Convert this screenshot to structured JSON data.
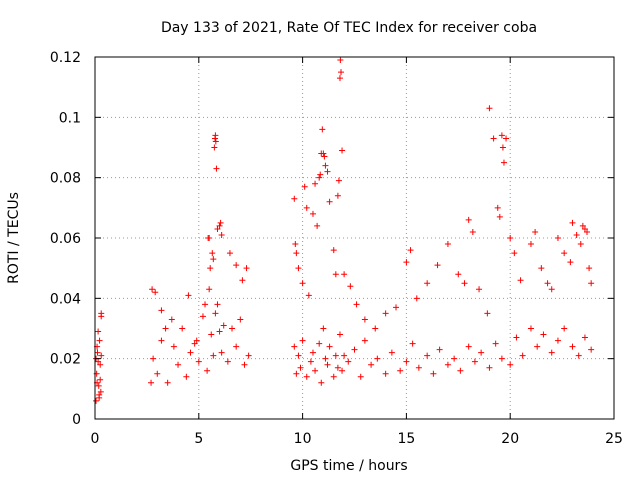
{
  "chart_data": {
    "type": "scatter",
    "title": "Day 133 of 2021, Rate Of TEC Index for receiver coba",
    "xlabel": "GPS time / hours",
    "ylabel": "ROTI / TECUs",
    "xlim": [
      0,
      25
    ],
    "ylim": [
      0,
      0.12
    ],
    "xticks": [
      0,
      5,
      10,
      15,
      20,
      25
    ],
    "xtick_labels": [
      "0",
      "5",
      "10",
      "15",
      "20",
      "25"
    ],
    "yticks": [
      0,
      0.02,
      0.04,
      0.06,
      0.08,
      0.1,
      0.12
    ],
    "ytick_labels": [
      "0",
      "0.02",
      "0.04",
      "0.06",
      "0.08",
      "0.1",
      "0.12"
    ],
    "grid": true,
    "marker": "+",
    "color": "#ff0000",
    "series": [
      {
        "name": "ROTI",
        "x": [
          0.05,
          0.1,
          0.15,
          0.2,
          0.25,
          0.3,
          0.05,
          0.12,
          0.18,
          0.22,
          0.28,
          0.3,
          0.08,
          0.15,
          0.25,
          0.1,
          0.2,
          0.3,
          2.7,
          2.75,
          2.8,
          3.0,
          3.2,
          3.5,
          3.8,
          4.0,
          4.2,
          4.4,
          4.6,
          4.8,
          5.0,
          5.2,
          5.4,
          5.5,
          5.6,
          5.7,
          5.8,
          5.9,
          6.0,
          6.1,
          6.2,
          6.4,
          6.6,
          6.8,
          7.0,
          7.2,
          7.4,
          3.4,
          3.7,
          4.5,
          4.9,
          5.3,
          5.45,
          5.5,
          5.55,
          5.65,
          5.7,
          5.75,
          5.78,
          5.8,
          5.82,
          5.85,
          5.9,
          6.0,
          6.05,
          6.1,
          6.5,
          6.8,
          7.1,
          7.3,
          3.2,
          2.9,
          9.6,
          9.7,
          9.8,
          9.9,
          10.0,
          10.2,
          10.4,
          10.5,
          10.6,
          10.8,
          10.9,
          11.0,
          11.1,
          11.2,
          11.3,
          11.5,
          11.6,
          11.7,
          11.8,
          11.9,
          12.0,
          12.2,
          12.5,
          12.8,
          13.0,
          13.3,
          13.6,
          14.0,
          14.3,
          14.7,
          15.0,
          15.3,
          15.6,
          16.0,
          16.3,
          16.6,
          17.0,
          17.3,
          17.6,
          18.0,
          18.3,
          18.6,
          19.0,
          19.3,
          19.6,
          20.0,
          20.3,
          20.6,
          21.0,
          21.3,
          21.6,
          22.0,
          22.3,
          22.6,
          23.0,
          23.3,
          23.6,
          23.9,
          9.6,
          9.65,
          9.7,
          9.8,
          10.0,
          10.1,
          10.2,
          10.3,
          10.5,
          10.6,
          10.7,
          10.8,
          10.85,
          10.9,
          10.95,
          11.0,
          11.05,
          11.1,
          11.2,
          11.3,
          11.5,
          11.6,
          11.7,
          11.75,
          11.8,
          11.82,
          11.85,
          11.9,
          12.0,
          12.3,
          12.6,
          13.0,
          13.5,
          14.0,
          14.5,
          15.0,
          15.2,
          15.5,
          16.0,
          16.5,
          17.0,
          17.5,
          17.8,
          18.0,
          18.2,
          18.5,
          18.9,
          19.0,
          19.2,
          19.4,
          19.5,
          19.6,
          19.65,
          19.7,
          19.8,
          20.0,
          20.2,
          20.5,
          21.0,
          21.2,
          21.5,
          21.8,
          22.0,
          22.3,
          22.6,
          22.9,
          23.0,
          23.2,
          23.4,
          23.5,
          23.6,
          23.7,
          23.8,
          23.9
        ],
        "y": [
          0.02,
          0.012,
          0.029,
          0.008,
          0.018,
          0.034,
          0.006,
          0.022,
          0.011,
          0.026,
          0.009,
          0.035,
          0.015,
          0.019,
          0.013,
          0.024,
          0.007,
          0.021,
          0.012,
          0.043,
          0.02,
          0.015,
          0.026,
          0.012,
          0.024,
          0.018,
          0.03,
          0.014,
          0.022,
          0.025,
          0.019,
          0.034,
          0.016,
          0.043,
          0.028,
          0.021,
          0.035,
          0.038,
          0.029,
          0.022,
          0.031,
          0.019,
          0.03,
          0.024,
          0.033,
          0.018,
          0.021,
          0.03,
          0.033,
          0.041,
          0.026,
          0.038,
          0.06,
          0.06,
          0.05,
          0.055,
          0.053,
          0.09,
          0.093,
          0.094,
          0.092,
          0.083,
          0.063,
          0.064,
          0.065,
          0.061,
          0.055,
          0.051,
          0.046,
          0.05,
          0.036,
          0.042,
          0.024,
          0.015,
          0.021,
          0.017,
          0.026,
          0.014,
          0.019,
          0.022,
          0.016,
          0.025,
          0.012,
          0.03,
          0.02,
          0.018,
          0.024,
          0.014,
          0.021,
          0.017,
          0.028,
          0.016,
          0.021,
          0.019,
          0.023,
          0.014,
          0.026,
          0.018,
          0.02,
          0.015,
          0.022,
          0.016,
          0.019,
          0.025,
          0.017,
          0.021,
          0.015,
          0.023,
          0.018,
          0.02,
          0.016,
          0.024,
          0.019,
          0.022,
          0.017,
          0.025,
          0.02,
          0.018,
          0.027,
          0.021,
          0.03,
          0.024,
          0.028,
          0.022,
          0.026,
          0.03,
          0.024,
          0.021,
          0.027,
          0.023,
          0.073,
          0.058,
          0.055,
          0.05,
          0.045,
          0.077,
          0.07,
          0.041,
          0.068,
          0.078,
          0.064,
          0.08,
          0.081,
          0.088,
          0.096,
          0.088,
          0.087,
          0.084,
          0.082,
          0.072,
          0.056,
          0.048,
          0.074,
          0.079,
          0.113,
          0.119,
          0.115,
          0.089,
          0.048,
          0.044,
          0.038,
          0.033,
          0.03,
          0.035,
          0.037,
          0.052,
          0.056,
          0.04,
          0.045,
          0.051,
          0.058,
          0.048,
          0.045,
          0.066,
          0.062,
          0.043,
          0.035,
          0.103,
          0.093,
          0.07,
          0.067,
          0.094,
          0.09,
          0.085,
          0.093,
          0.06,
          0.055,
          0.046,
          0.058,
          0.062,
          0.05,
          0.045,
          0.043,
          0.06,
          0.055,
          0.052,
          0.065,
          0.061,
          0.058,
          0.064,
          0.063,
          0.062,
          0.05,
          0.045
        ]
      }
    ]
  }
}
